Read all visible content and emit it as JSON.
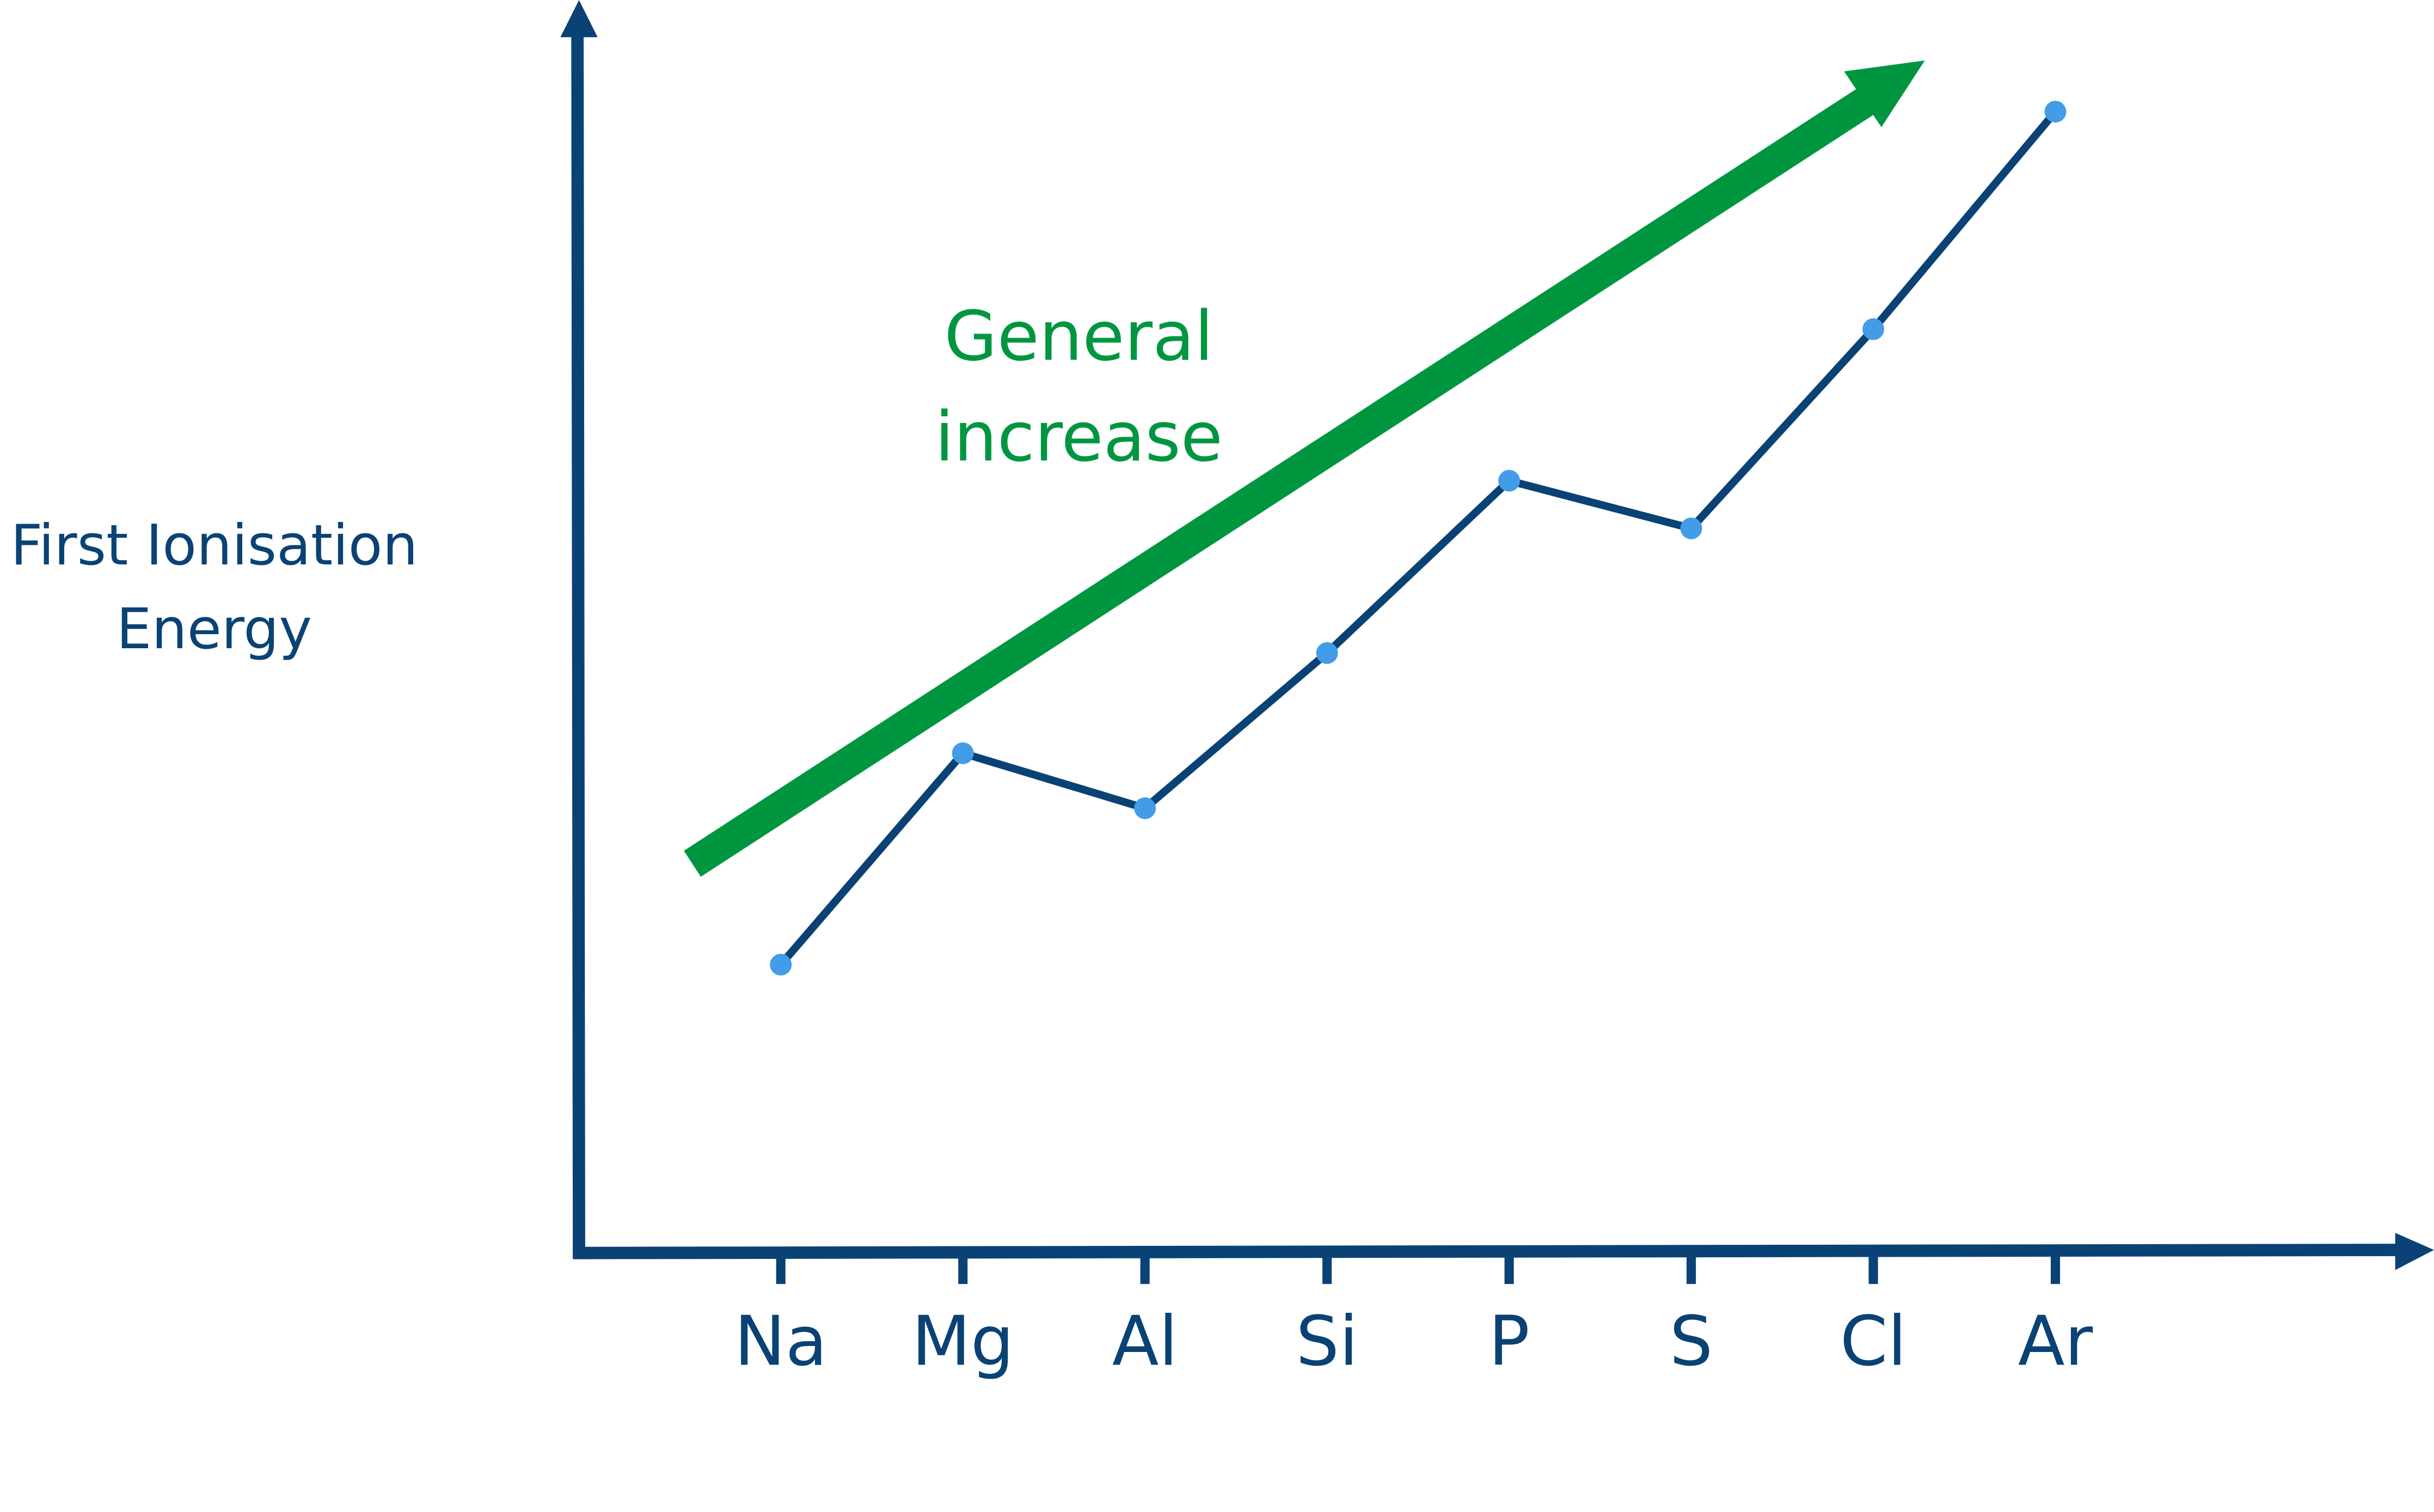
{
  "chart_data": {
    "type": "line",
    "title": "",
    "xlabel": "",
    "ylabel": "First Ionisation Energy",
    "ylabel_lines": [
      "First Ionisation",
      "Energy"
    ],
    "categories": [
      "Na",
      "Mg",
      "Al",
      "Si",
      "P",
      "S",
      "Cl",
      "Ar"
    ],
    "values": [
      23.6,
      40.9,
      36.4,
      49.1,
      63.2,
      59.3,
      75.6,
      93.4
    ],
    "ylim": [
      0,
      100
    ],
    "y_units": "relative (no numeric scale shown)",
    "grid": false,
    "legend": "none",
    "annotation": {
      "lines": [
        "General",
        "increase"
      ],
      "type": "trend-arrow"
    },
    "colors": {
      "axis": "#0a4275",
      "line": "#0a4275",
      "points": "#429ce8",
      "annotation": "#009640"
    }
  }
}
